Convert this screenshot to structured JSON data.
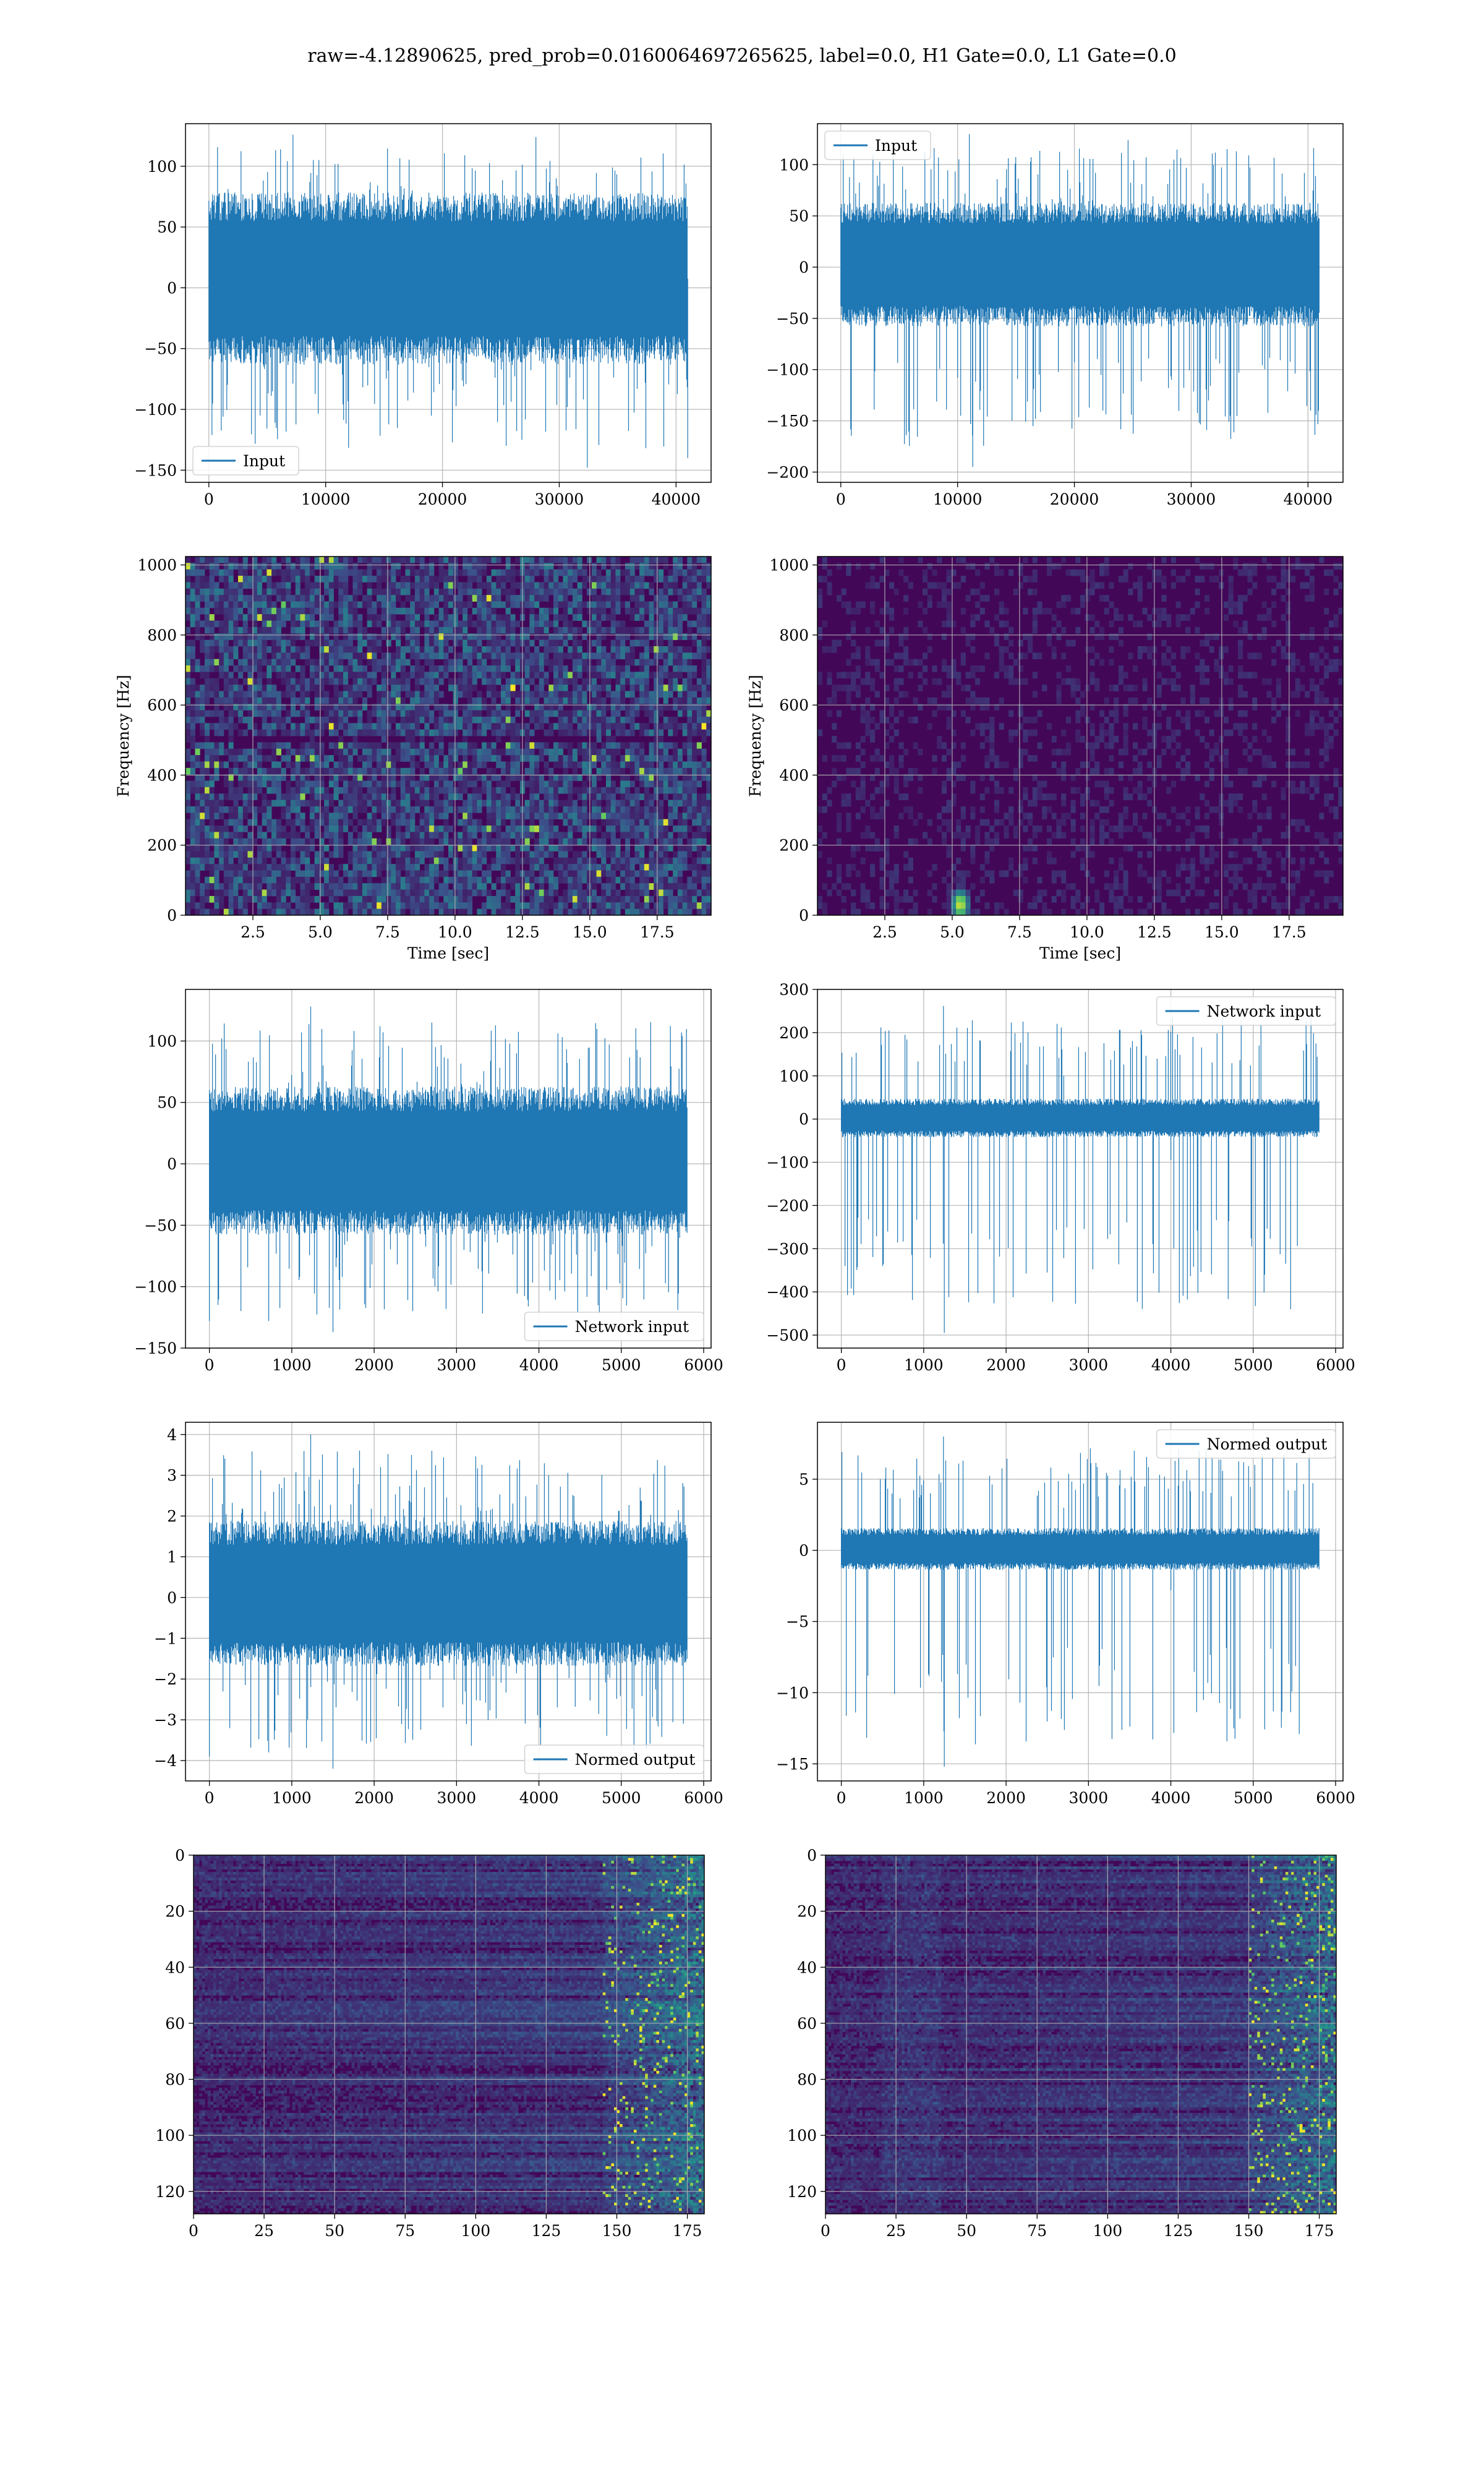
{
  "title": "raw=-4.12890625, pred_prob=0.0160064697265625, label=0.0, H1 Gate=0.0, L1 Gate=0.0",
  "colors": {
    "series": "#1f77b4",
    "grid": "#b0b0b0",
    "heat_low": "#440154",
    "heat_mid": "#21918c",
    "heat_high": "#fde725"
  },
  "chart_data": [
    {
      "id": "input-h1",
      "type": "line",
      "title": "",
      "xlabel": "",
      "ylabel": "",
      "xlim": [
        -2000,
        43000
      ],
      "ylim": [
        -160,
        135
      ],
      "xticks": [
        0,
        10000,
        20000,
        30000,
        40000
      ],
      "yticks": [
        -150,
        -100,
        -50,
        0,
        50,
        100
      ],
      "grid": true,
      "legend": "lower-left",
      "series": [
        {
          "name": "Input",
          "n_points": 40960,
          "envelope": [
            -60,
            75
          ],
          "peak_range": [
            -148,
            128
          ],
          "spikes": [
            [
              32400,
              -148
            ],
            [
              26800,
              -125
            ],
            [
              41000,
              -140
            ],
            [
              7200,
              126
            ],
            [
              28000,
              124
            ]
          ]
        }
      ]
    },
    {
      "id": "input-l1",
      "type": "line",
      "title": "",
      "xlabel": "",
      "ylabel": "",
      "xlim": [
        -2000,
        43000
      ],
      "ylim": [
        -210,
        140
      ],
      "xticks": [
        0,
        10000,
        20000,
        30000,
        40000
      ],
      "yticks": [
        -200,
        -150,
        -100,
        -50,
        0,
        50,
        100
      ],
      "grid": true,
      "legend": "upper-left",
      "series": [
        {
          "name": "Input",
          "n_points": 40960,
          "envelope": [
            -55,
            60
          ],
          "peak_range": [
            -195,
            130
          ],
          "spikes": [
            [
              11300,
              -195
            ],
            [
              11000,
              130
            ],
            [
              30800,
              -118
            ],
            [
              24600,
              124
            ]
          ]
        }
      ]
    },
    {
      "id": "spec-h1",
      "type": "heatmap",
      "title": "",
      "xlabel": "Time [sec]",
      "ylabel": "Frequency [Hz]",
      "xlim": [
        0,
        19.5
      ],
      "ylim": [
        0,
        1024
      ],
      "xticks": [
        2.5,
        5.0,
        7.5,
        10.0,
        12.5,
        15.0,
        17.5
      ],
      "yticks": [
        0,
        200,
        400,
        600,
        800,
        1000
      ],
      "grid": true,
      "intensity": "bright-speckled",
      "band_dark_hz": 500
    },
    {
      "id": "spec-l1",
      "type": "heatmap",
      "title": "",
      "xlabel": "Time [sec]",
      "ylabel": "Frequency [Hz]",
      "xlim": [
        0,
        19.5
      ],
      "ylim": [
        0,
        1024
      ],
      "xticks": [
        2.5,
        5.0,
        7.5,
        10.0,
        12.5,
        15.0,
        17.5
      ],
      "yticks": [
        0,
        200,
        400,
        600,
        800,
        1000
      ],
      "grid": true,
      "intensity": "dark",
      "hotspot": [
        5.3,
        30
      ]
    },
    {
      "id": "net-h1",
      "type": "line",
      "title": "",
      "xlabel": "",
      "ylabel": "",
      "xlim": [
        -290,
        6090
      ],
      "ylim": [
        -150,
        142
      ],
      "xticks": [
        0,
        1000,
        2000,
        3000,
        4000,
        5000,
        6000
      ],
      "yticks": [
        -150,
        -100,
        -50,
        0,
        50,
        100
      ],
      "grid": true,
      "legend": "lower-right",
      "series": [
        {
          "name": "Network input",
          "n_points": 5800,
          "envelope": [
            -55,
            60
          ],
          "peak_range": [
            -137,
            128
          ],
          "spikes": [
            [
              1500,
              -137
            ],
            [
              0,
              -128
            ],
            [
              720,
              -128
            ],
            [
              1230,
              128
            ],
            [
              2700,
              115
            ]
          ]
        }
      ]
    },
    {
      "id": "net-l1",
      "type": "line",
      "title": "",
      "xlabel": "",
      "ylabel": "",
      "xlim": [
        -290,
        6090
      ],
      "ylim": [
        -530,
        300
      ],
      "xticks": [
        0,
        1000,
        2000,
        3000,
        4000,
        5000,
        6000
      ],
      "yticks": [
        -500,
        -400,
        -300,
        -200,
        -100,
        0,
        100,
        200,
        300
      ],
      "grid": true,
      "legend": "upper-right",
      "series": [
        {
          "name": "Network input",
          "n_points": 5800,
          "envelope": [
            -40,
            45
          ],
          "peak_range": [
            -495,
            262
          ],
          "spikes": [
            [
              1240,
              262
            ],
            [
              1250,
              -495
            ],
            [
              2700,
              100
            ],
            [
              4000,
              -95
            ]
          ]
        }
      ]
    },
    {
      "id": "norm-h1",
      "type": "line",
      "title": "",
      "xlabel": "",
      "ylabel": "",
      "xlim": [
        -290,
        6090
      ],
      "ylim": [
        -4.5,
        4.3
      ],
      "xticks": [
        0,
        1000,
        2000,
        3000,
        4000,
        5000,
        6000
      ],
      "yticks": [
        -4,
        -3,
        -2,
        -1,
        0,
        1,
        2,
        3,
        4
      ],
      "grid": true,
      "legend": "lower-right",
      "series": [
        {
          "name": "Normed output",
          "n_points": 5800,
          "envelope": [
            -1.6,
            1.8
          ],
          "peak_range": [
            -4.2,
            4.0
          ],
          "spikes": [
            [
              1500,
              -4.2
            ],
            [
              0,
              -3.9
            ],
            [
              720,
              -3.8
            ],
            [
              1230,
              4.0
            ],
            [
              2700,
              3.6
            ]
          ]
        }
      ]
    },
    {
      "id": "norm-l1",
      "type": "line",
      "title": "",
      "xlabel": "",
      "ylabel": "",
      "xlim": [
        -290,
        6090
      ],
      "ylim": [
        -16.2,
        9.0
      ],
      "xticks": [
        0,
        1000,
        2000,
        3000,
        4000,
        5000,
        6000
      ],
      "yticks": [
        -15,
        -10,
        -5,
        0,
        5
      ],
      "grid": true,
      "legend": "upper-right",
      "series": [
        {
          "name": "Normed output",
          "n_points": 5800,
          "envelope": [
            -1.3,
            1.5
          ],
          "peak_range": [
            -15.2,
            8.0
          ],
          "spikes": [
            [
              1240,
              8.0
            ],
            [
              1250,
              -15.2
            ],
            [
              2700,
              3.0
            ],
            [
              4000,
              -2.8
            ]
          ]
        }
      ]
    },
    {
      "id": "feat-h1",
      "type": "heatmap",
      "title": "",
      "xlabel": "",
      "ylabel": "",
      "xlim": [
        0,
        181
      ],
      "ylim": [
        128,
        0
      ],
      "xticks": [
        0,
        25,
        50,
        75,
        100,
        125,
        150,
        175
      ],
      "yticks": [
        0,
        20,
        40,
        60,
        80,
        100,
        120
      ],
      "grid": true,
      "rows": 128,
      "cols": 181,
      "bright_columns_from": 145
    },
    {
      "id": "feat-l1",
      "type": "heatmap",
      "title": "",
      "xlabel": "",
      "ylabel": "",
      "xlim": [
        0,
        181
      ],
      "ylim": [
        128,
        0
      ],
      "xticks": [
        0,
        25,
        50,
        75,
        100,
        125,
        150,
        175
      ],
      "yticks": [
        0,
        20,
        40,
        60,
        80,
        100,
        120
      ],
      "grid": true,
      "rows": 128,
      "cols": 181,
      "bright_columns_from": 150,
      "bright_band_cols": [
        20,
        40
      ]
    }
  ]
}
